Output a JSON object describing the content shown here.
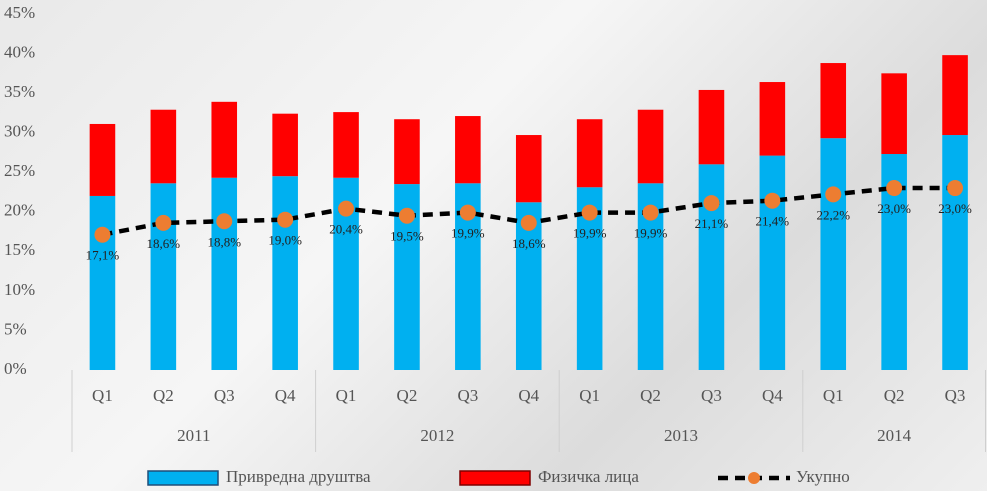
{
  "chart_data": {
    "type": "bar",
    "stacked": true,
    "categories": [
      "Q1",
      "Q2",
      "Q3",
      "Q4",
      "Q1",
      "Q2",
      "Q3",
      "Q4",
      "Q1",
      "Q2",
      "Q3",
      "Q4",
      "Q1",
      "Q2",
      "Q3"
    ],
    "group_labels": [
      "2011",
      "2012",
      "2013",
      "2014"
    ],
    "ylim": [
      0,
      45
    ],
    "yticks": [
      {
        "value": 0,
        "label": "0%"
      },
      {
        "value": 5,
        "label": "5%"
      },
      {
        "value": 10,
        "label": "10%"
      },
      {
        "value": 15,
        "label": "15%"
      },
      {
        "value": 20,
        "label": "20%"
      },
      {
        "value": 25,
        "label": "25%"
      },
      {
        "value": 30,
        "label": "30%"
      },
      {
        "value": 35,
        "label": "35%"
      },
      {
        "value": 40,
        "label": "40%"
      },
      {
        "value": 45,
        "label": "45%"
      }
    ],
    "legend": "bottom",
    "series": [
      {
        "name": "Привредна друштва",
        "type": "bar",
        "color": "#00b0f0",
        "values": [
          22.0,
          23.6,
          24.3,
          24.5,
          24.3,
          23.5,
          23.6,
          21.2,
          23.1,
          23.6,
          26.0,
          27.1,
          29.3,
          27.3,
          29.7
        ]
      },
      {
        "name": "Физичка лица",
        "type": "bar",
        "color": "#ff0000",
        "values": [
          9.1,
          9.3,
          9.6,
          7.9,
          8.3,
          8.2,
          8.5,
          8.5,
          8.6,
          9.3,
          9.4,
          9.3,
          9.5,
          10.2,
          10.1
        ]
      },
      {
        "name": "Укупно",
        "type": "line",
        "color": "#000000",
        "marker_color": "#ed7d31",
        "values": [
          17.1,
          18.6,
          18.8,
          19.0,
          20.4,
          19.5,
          19.9,
          18.6,
          19.9,
          19.9,
          21.1,
          21.4,
          22.2,
          23.0,
          23.0
        ],
        "value_labels": [
          "17,1%",
          "18,6%",
          "18,8%",
          "19,0%",
          "20,4%",
          "19,5%",
          "19,9%",
          "18,6%",
          "19,9%",
          "19,9%",
          "21,1%",
          "21,4%",
          "22,2%",
          "23,0%",
          "23,0%"
        ]
      }
    ]
  }
}
